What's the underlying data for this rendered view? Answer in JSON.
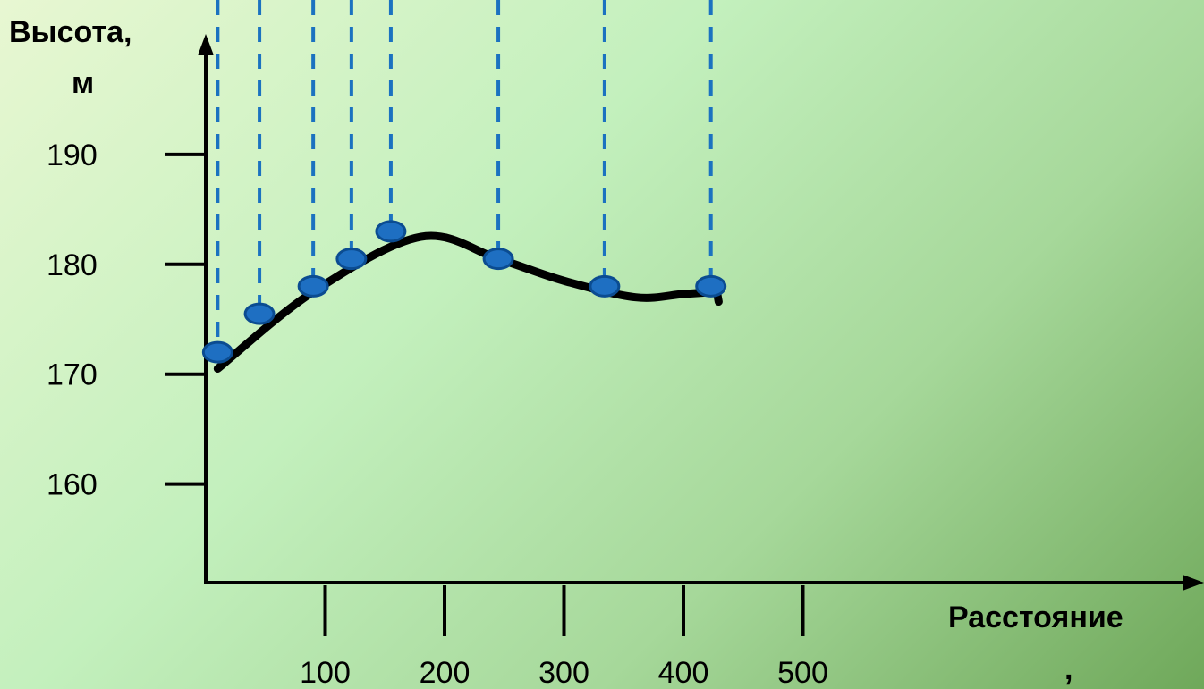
{
  "chart_data": {
    "type": "line",
    "ylabel_lines": [
      "Высота,",
      "м"
    ],
    "xlabel_lines": [
      "Расстояние",
      ","
    ],
    "y_ticks": [
      160,
      170,
      180,
      190
    ],
    "x_ticks": [
      100,
      200,
      300,
      400,
      500
    ],
    "ylim": [
      150,
      200
    ],
    "xlim": [
      0,
      500
    ],
    "grid": false,
    "series": [
      {
        "points": [
          {
            "x": 10,
            "y": 172
          },
          {
            "x": 45,
            "y": 175.5
          },
          {
            "x": 90,
            "y": 178
          },
          {
            "x": 122,
            "y": 180.5
          },
          {
            "x": 155,
            "y": 183
          },
          {
            "x": 245,
            "y": 180.5
          },
          {
            "x": 334,
            "y": 178
          },
          {
            "x": 423,
            "y": 178
          }
        ]
      }
    ],
    "trend_curve": [
      {
        "x": 10,
        "y": 170.5
      },
      {
        "x": 90,
        "y": 177.5
      },
      {
        "x": 180,
        "y": 182.5
      },
      {
        "x": 245,
        "y": 180.5
      },
      {
        "x": 300,
        "y": 178.5
      },
      {
        "x": 360,
        "y": 177
      },
      {
        "x": 400,
        "y": 177.3
      },
      {
        "x": 428,
        "y": 177.5
      }
    ],
    "colors": {
      "axis": "#000000",
      "curve": "#000000",
      "point_fill": "#1e6fc2",
      "point_stroke": "#0b4c91",
      "dropline": "#1b72c0"
    }
  }
}
